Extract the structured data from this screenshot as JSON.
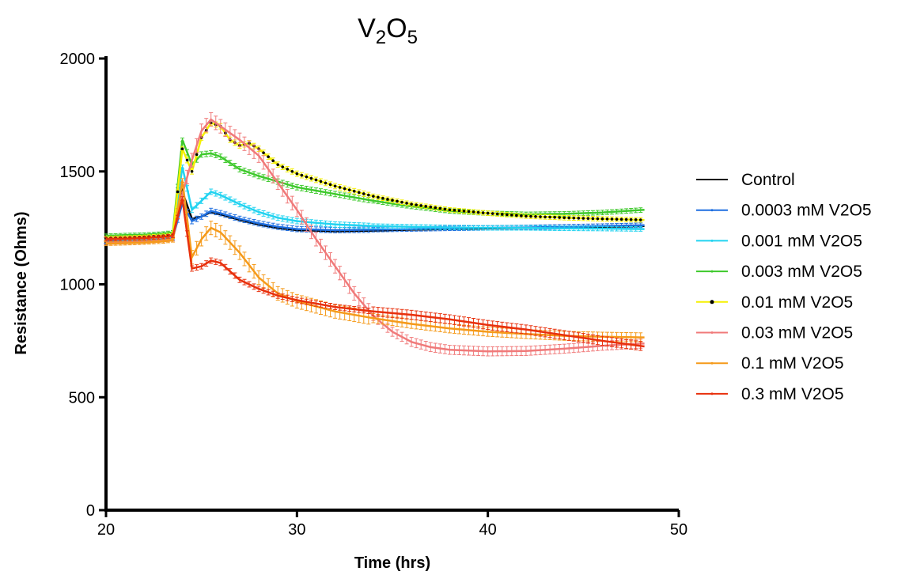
{
  "chart_data": {
    "type": "line",
    "title": {
      "parts": [
        {
          "text": "V",
          "sub": false
        },
        {
          "text": "2",
          "sub": true
        },
        {
          "text": "O",
          "sub": false
        },
        {
          "text": "5",
          "sub": true
        }
      ]
    },
    "xlabel": "Time (hrs)",
    "ylabel": "Resistance (Ohms)",
    "xlim": [
      20,
      50
    ],
    "ylim": [
      0,
      2000
    ],
    "xticks": [
      20,
      30,
      40,
      50
    ],
    "yticks": [
      0,
      500,
      1000,
      1500,
      2000
    ],
    "grid": false,
    "legend_position": "right",
    "error_bars": true,
    "series": [
      {
        "name": "Control",
        "color": "#000000",
        "marker": "none",
        "error_bars": false,
        "points": [
          [
            20,
            1195
          ],
          [
            21,
            1197
          ],
          [
            22,
            1200
          ],
          [
            23,
            1205
          ],
          [
            23.5,
            1208
          ],
          [
            24,
            1410
          ],
          [
            24.5,
            1290
          ],
          [
            25,
            1300
          ],
          [
            25.5,
            1320
          ],
          [
            26,
            1310
          ],
          [
            27,
            1285
          ],
          [
            28,
            1265
          ],
          [
            29,
            1250
          ],
          [
            30,
            1240
          ],
          [
            32,
            1235
          ],
          [
            34,
            1238
          ],
          [
            36,
            1242
          ],
          [
            38,
            1245
          ],
          [
            40,
            1248
          ],
          [
            42,
            1250
          ],
          [
            44,
            1252
          ],
          [
            46,
            1255
          ],
          [
            48.2,
            1258
          ]
        ]
      },
      {
        "name": "0.0003 mM V2O5",
        "color": "#1f6fe0",
        "marker": "dot",
        "points": [
          [
            20,
            1190
          ],
          [
            21,
            1192
          ],
          [
            22,
            1195
          ],
          [
            23,
            1200
          ],
          [
            23.5,
            1205
          ],
          [
            24,
            1360
          ],
          [
            24.5,
            1280
          ],
          [
            25,
            1300
          ],
          [
            25.5,
            1325
          ],
          [
            26,
            1315
          ],
          [
            27,
            1290
          ],
          [
            28,
            1270
          ],
          [
            29,
            1255
          ],
          [
            30,
            1245
          ],
          [
            32,
            1240
          ],
          [
            34,
            1242
          ],
          [
            36,
            1245
          ],
          [
            38,
            1248
          ],
          [
            40,
            1250
          ],
          [
            42,
            1252
          ],
          [
            44,
            1255
          ],
          [
            46,
            1258
          ],
          [
            48.2,
            1262
          ]
        ]
      },
      {
        "name": "0.001 mM V2O5",
        "color": "#22d3f0",
        "marker": "dot",
        "points": [
          [
            20,
            1200
          ],
          [
            21,
            1195
          ],
          [
            22,
            1200
          ],
          [
            23,
            1205
          ],
          [
            23.5,
            1210
          ],
          [
            24,
            1520
          ],
          [
            24.5,
            1330
          ],
          [
            25,
            1370
          ],
          [
            25.5,
            1410
          ],
          [
            26,
            1395
          ],
          [
            27,
            1355
          ],
          [
            28,
            1320
          ],
          [
            29,
            1295
          ],
          [
            30,
            1280
          ],
          [
            32,
            1265
          ],
          [
            34,
            1258
          ],
          [
            36,
            1255
          ],
          [
            38,
            1252
          ],
          [
            40,
            1250
          ],
          [
            42,
            1250
          ],
          [
            44,
            1248
          ],
          [
            46,
            1247
          ],
          [
            48.2,
            1245
          ]
        ]
      },
      {
        "name": "0.003 mM V2O5",
        "color": "#3ec92c",
        "marker": "dot",
        "points": [
          [
            20,
            1215
          ],
          [
            21,
            1218
          ],
          [
            22,
            1220
          ],
          [
            23,
            1225
          ],
          [
            23.5,
            1230
          ],
          [
            24,
            1640
          ],
          [
            24.5,
            1530
          ],
          [
            25,
            1575
          ],
          [
            25.5,
            1580
          ],
          [
            26,
            1565
          ],
          [
            27,
            1510
          ],
          [
            28,
            1480
          ],
          [
            29,
            1455
          ],
          [
            30,
            1430
          ],
          [
            32,
            1400
          ],
          [
            34,
            1370
          ],
          [
            36,
            1345
          ],
          [
            38,
            1325
          ],
          [
            40,
            1315
          ],
          [
            42,
            1310
          ],
          [
            44,
            1312
          ],
          [
            46,
            1318
          ],
          [
            48.2,
            1330
          ]
        ]
      },
      {
        "name": "0.01 mM V2O5",
        "color": "#f5f000",
        "marker": "black-dot",
        "points": [
          [
            20,
            1205
          ],
          [
            21,
            1207
          ],
          [
            22,
            1210
          ],
          [
            23,
            1215
          ],
          [
            23.5,
            1220
          ],
          [
            24,
            1600
          ],
          [
            24.5,
            1500
          ],
          [
            25,
            1650
          ],
          [
            25.5,
            1715
          ],
          [
            26,
            1700
          ],
          [
            26.5,
            1640
          ],
          [
            27,
            1615
          ],
          [
            27.5,
            1625
          ],
          [
            28,
            1600
          ],
          [
            29,
            1530
          ],
          [
            30,
            1490
          ],
          [
            32,
            1435
          ],
          [
            34,
            1390
          ],
          [
            36,
            1355
          ],
          [
            38,
            1330
          ],
          [
            40,
            1315
          ],
          [
            42,
            1302
          ],
          [
            44,
            1295
          ],
          [
            46,
            1290
          ],
          [
            48.2,
            1285
          ]
        ]
      },
      {
        "name": "0.03 mM V2O5",
        "color": "#f07a7a",
        "marker": "dot",
        "points": [
          [
            20,
            1185
          ],
          [
            21,
            1187
          ],
          [
            22,
            1190
          ],
          [
            23,
            1195
          ],
          [
            23.5,
            1200
          ],
          [
            24,
            1400
          ],
          [
            24.5,
            1550
          ],
          [
            25,
            1680
          ],
          [
            25.5,
            1730
          ],
          [
            26,
            1700
          ],
          [
            27,
            1640
          ],
          [
            28,
            1570
          ],
          [
            29,
            1450
          ],
          [
            30,
            1330
          ],
          [
            31,
            1200
          ],
          [
            32,
            1080
          ],
          [
            33,
            960
          ],
          [
            34,
            860
          ],
          [
            35,
            790
          ],
          [
            36,
            745
          ],
          [
            37,
            722
          ],
          [
            38,
            710
          ],
          [
            40,
            703
          ],
          [
            42,
            705
          ],
          [
            44,
            715
          ],
          [
            46,
            728
          ],
          [
            48.2,
            738
          ]
        ]
      },
      {
        "name": "0.1 mM V2O5",
        "color": "#f59a1a",
        "marker": "dot",
        "points": [
          [
            20,
            1180
          ],
          [
            21,
            1182
          ],
          [
            22,
            1185
          ],
          [
            23,
            1190
          ],
          [
            23.5,
            1195
          ],
          [
            24,
            1460
          ],
          [
            24.5,
            1120
          ],
          [
            25,
            1200
          ],
          [
            25.5,
            1250
          ],
          [
            26,
            1230
          ],
          [
            27,
            1140
          ],
          [
            28,
            1030
          ],
          [
            29,
            960
          ],
          [
            30,
            925
          ],
          [
            32,
            880
          ],
          [
            34,
            850
          ],
          [
            36,
            825
          ],
          [
            38,
            805
          ],
          [
            40,
            790
          ],
          [
            42,
            780
          ],
          [
            44,
            772
          ],
          [
            46,
            768
          ],
          [
            48.2,
            765
          ]
        ]
      },
      {
        "name": "0.3 mM V2O5",
        "color": "#e8300c",
        "marker": "dot",
        "points": [
          [
            20,
            1200
          ],
          [
            21,
            1202
          ],
          [
            22,
            1205
          ],
          [
            23,
            1210
          ],
          [
            23.5,
            1215
          ],
          [
            24,
            1380
          ],
          [
            24.5,
            1070
          ],
          [
            25,
            1080
          ],
          [
            25.5,
            1105
          ],
          [
            26,
            1095
          ],
          [
            27,
            1020
          ],
          [
            28,
            980
          ],
          [
            29,
            950
          ],
          [
            30,
            930
          ],
          [
            32,
            900
          ],
          [
            34,
            880
          ],
          [
            36,
            865
          ],
          [
            38,
            845
          ],
          [
            40,
            820
          ],
          [
            42,
            800
          ],
          [
            44,
            775
          ],
          [
            46,
            750
          ],
          [
            48.2,
            725
          ]
        ]
      }
    ]
  }
}
